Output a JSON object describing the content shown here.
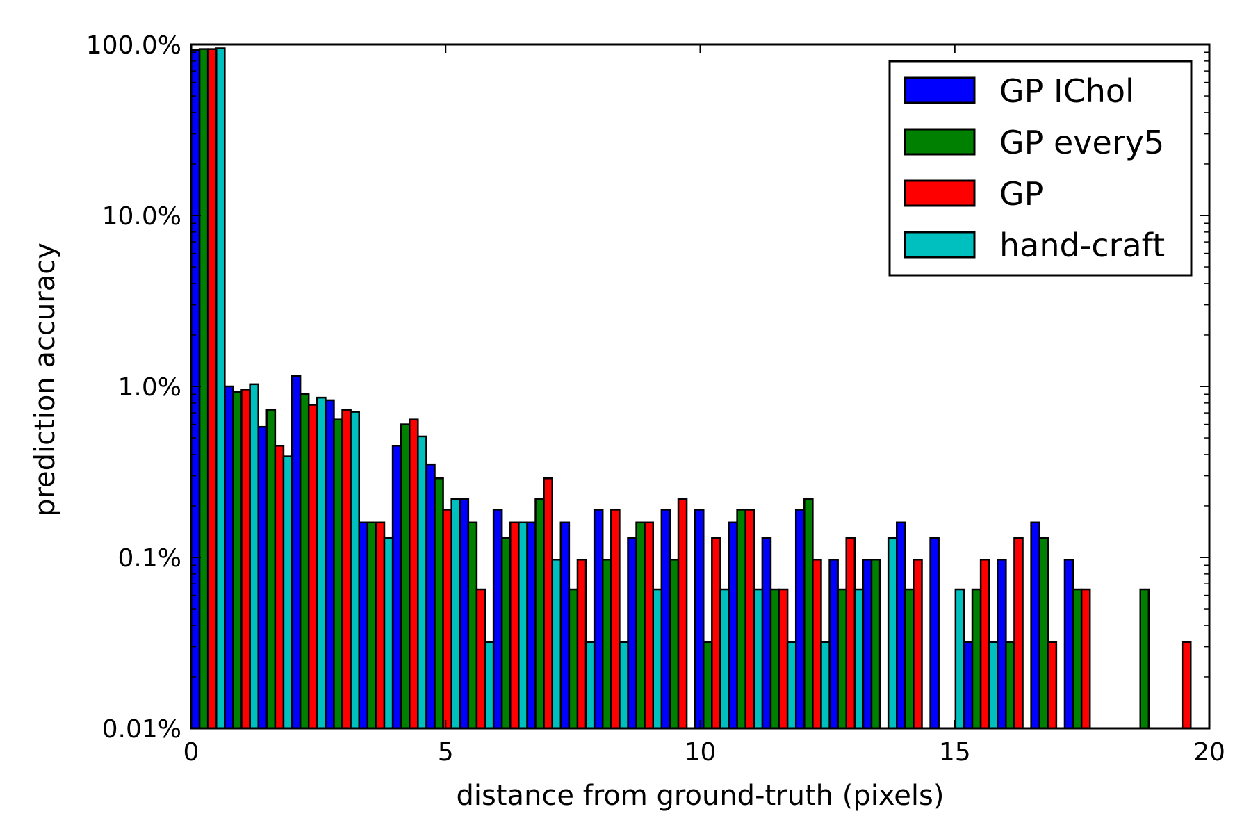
{
  "chart_data": {
    "type": "bar",
    "xlabel": "distance from ground-truth (pixels)",
    "ylabel": "prediction accuracy",
    "xlim": [
      0,
      20
    ],
    "ylim": [
      0.01,
      100
    ],
    "yscale": "log",
    "grid": false,
    "legend_position": "top-right",
    "x_ticks": [
      {
        "value": 0,
        "label": "0"
      },
      {
        "value": 5,
        "label": "5"
      },
      {
        "value": 10,
        "label": "10"
      },
      {
        "value": 15,
        "label": "15"
      },
      {
        "value": 20,
        "label": "20"
      }
    ],
    "y_ticks": [
      {
        "value": 0.01,
        "label": "0.01%"
      },
      {
        "value": 0.1,
        "label": "0.1%"
      },
      {
        "value": 1,
        "label": "1.0%"
      },
      {
        "value": 10,
        "label": "10.0%"
      },
      {
        "value": 100,
        "label": "100.0%"
      }
    ],
    "bin_width": 0.66,
    "bins": [
      0,
      0.66,
      1.32,
      1.98,
      2.64,
      3.3,
      3.96,
      4.62,
      5.28,
      5.94,
      6.6,
      7.26,
      7.92,
      8.58,
      9.24,
      9.9,
      10.56,
      11.22,
      11.88,
      12.54,
      13.2,
      13.86,
      14.52,
      15.18,
      15.84,
      16.5,
      17.16,
      17.82,
      18.48,
      19.14
    ],
    "series": [
      {
        "name": "GP IChol",
        "color": "#0000ff",
        "values": [
          93,
          1.0,
          0.58,
          1.15,
          0.83,
          0.16,
          0.45,
          0.35,
          0.22,
          0.19,
          0.16,
          0.16,
          0.19,
          0.13,
          0.19,
          0.19,
          0.16,
          0.13,
          0.19,
          0.097,
          0.097,
          0.16,
          0.13,
          0.032,
          0.097,
          0.16,
          0.097,
          null,
          null,
          null
        ]
      },
      {
        "name": "GP every5",
        "color": "#008000",
        "values": [
          94,
          0.93,
          0.73,
          0.9,
          0.64,
          0.16,
          0.6,
          0.29,
          0.16,
          0.13,
          0.22,
          0.065,
          0.097,
          0.16,
          0.097,
          0.032,
          0.19,
          0.065,
          0.22,
          0.065,
          0.097,
          0.065,
          null,
          0.065,
          0.032,
          0.13,
          0.065,
          null,
          0.065,
          null
        ]
      },
      {
        "name": "GP",
        "color": "#ff0000",
        "values": [
          94,
          0.96,
          0.45,
          0.78,
          0.73,
          0.16,
          0.64,
          0.19,
          0.065,
          0.16,
          0.29,
          0.097,
          0.19,
          0.16,
          0.22,
          0.13,
          0.19,
          0.065,
          0.097,
          0.13,
          null,
          0.097,
          null,
          0.097,
          0.13,
          0.032,
          0.065,
          null,
          null,
          0.032
        ]
      },
      {
        "name": "hand-craft",
        "color": "#00bfbf",
        "values": [
          95,
          1.03,
          0.39,
          0.86,
          0.71,
          0.13,
          0.51,
          0.22,
          0.032,
          0.16,
          0.097,
          0.032,
          0.032,
          0.065,
          null,
          0.065,
          0.065,
          0.032,
          0.032,
          0.065,
          0.13,
          null,
          0.065,
          0.032,
          null,
          null,
          null,
          null,
          null,
          null
        ]
      }
    ]
  }
}
